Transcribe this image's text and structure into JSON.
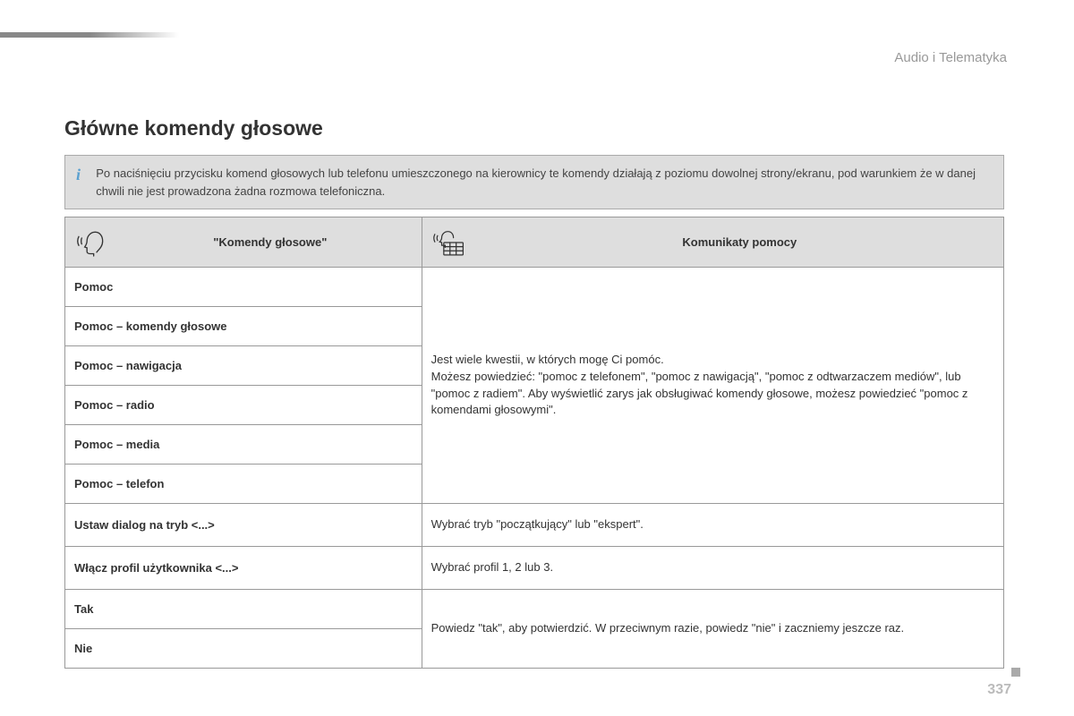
{
  "section_label": "Audio i Telematyka",
  "page_title": "Główne komendy głosowe",
  "info_text": "Po naciśnięciu przycisku komend głosowych lub telefonu umieszczonego na kierownicy te komendy działają z poziomu dowolnej strony/ekranu, pod warunkiem że w danej chwili nie jest prowadzona żadna rozmowa telefoniczna.",
  "table": {
    "header_left": "\"Komendy głosowe\"",
    "header_right": "Komunikaty pomocy",
    "groups": [
      {
        "commands": [
          "Pomoc",
          "Pomoc – komendy głosowe",
          "Pomoc – nawigacja",
          "Pomoc – radio",
          "Pomoc – media",
          "Pomoc – telefon"
        ],
        "help": "Jest wiele kwestii, w których mogę Ci pomóc.\nMożesz powiedzieć: \"pomoc z telefonem\", \"pomoc z nawigacją\", \"pomoc z odtwarzaczem mediów\", lub \"pomoc z radiem\". Aby wyświetlić zarys jak obsługiwać komendy głosowe, możesz powiedzieć \"pomoc z komendami głosowymi\"."
      },
      {
        "commands": [
          "Ustaw dialog na tryb <...>"
        ],
        "help": "Wybrać tryb \"początkujący\" lub \"ekspert\"."
      },
      {
        "commands": [
          "Włącz profil użytkownika <...>"
        ],
        "help": "Wybrać profil 1, 2 lub 3."
      },
      {
        "commands": [
          "Tak",
          "Nie"
        ],
        "help": "Powiedz \"tak\", aby potwierdzić. W przeciwnym razie, powiedz \"nie\" i zaczniemy jeszcze raz."
      }
    ]
  },
  "page_number": "337",
  "colors": {
    "header_bg": "#dedede",
    "border": "#999999",
    "text": "#333333",
    "muted": "#999999",
    "pagenum": "#bbbbbb",
    "info_icon": "#5aa0d0"
  }
}
